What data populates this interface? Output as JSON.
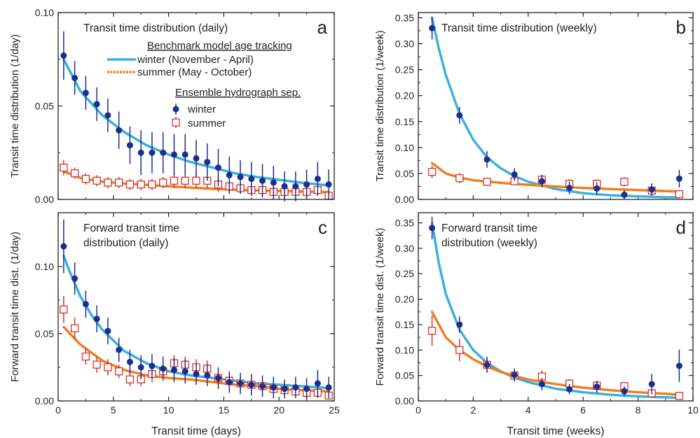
{
  "colors": {
    "winter_model": "#3ab0e2",
    "summer_model": "#f07f1e",
    "winter_points": "#1b2f8f",
    "summer_points": "#d9302b"
  },
  "legend": {
    "model_heading": "Benchmark model age tracking",
    "model_winter": "winter (November - April)",
    "model_summer": "summer (May - October)",
    "ehs_heading": "Ensemble hydrograph sep.",
    "ehs_winter": "winter",
    "ehs_summer": "summer"
  },
  "chart_data": [
    {
      "panel": "a",
      "type": "scatter",
      "title_lines": [
        "Transit time distribution (daily)"
      ],
      "xlabel": "",
      "ylabel": "Transit time distribution (1/day)",
      "xlim": [
        0,
        25
      ],
      "ylim": [
        0,
        0.1
      ],
      "xticks": [
        0,
        5,
        10,
        15,
        20,
        25
      ],
      "yticks": [
        0,
        0.05,
        0.1
      ],
      "ytick_labels": [
        "0.00",
        "0.05",
        "0.10"
      ],
      "show_xtick_labels": false,
      "model_winter": {
        "x": [
          0.5,
          2,
          4,
          6,
          8,
          10,
          12,
          14,
          16,
          18,
          20,
          22,
          24.5
        ],
        "y": [
          0.075,
          0.058,
          0.045,
          0.036,
          0.029,
          0.024,
          0.02,
          0.017,
          0.014,
          0.012,
          0.0105,
          0.009,
          0.0075
        ]
      },
      "model_summer": {
        "x": [
          0.5,
          2,
          4,
          6,
          8,
          10,
          12,
          14,
          16,
          18,
          20,
          22,
          24.5
        ],
        "y": [
          0.015,
          0.0115,
          0.0095,
          0.0085,
          0.0078,
          0.007,
          0.0063,
          0.0057,
          0.0052,
          0.0048,
          0.0045,
          0.0042,
          0.0039
        ]
      },
      "ehs_winter": {
        "x": [
          0.5,
          1.5,
          2.5,
          3.5,
          4.5,
          5.5,
          6.5,
          7.5,
          8.5,
          9.5,
          10.5,
          11.5,
          12.5,
          13.5,
          14.5,
          15.5,
          16.5,
          17.5,
          18.5,
          19.5,
          20.5,
          21.5,
          22.5,
          23.5,
          24.5
        ],
        "y": [
          0.077,
          0.065,
          0.057,
          0.051,
          0.045,
          0.037,
          0.029,
          0.025,
          0.025,
          0.025,
          0.024,
          0.024,
          0.022,
          0.02,
          0.017,
          0.013,
          0.012,
          0.011,
          0.01,
          0.009,
          0.007,
          0.007,
          0.008,
          0.011,
          0.008
        ],
        "err": [
          0.013,
          0.009,
          0.009,
          0.009,
          0.009,
          0.01,
          0.01,
          0.012,
          0.011,
          0.011,
          0.011,
          0.011,
          0.01,
          0.01,
          0.01,
          0.01,
          0.009,
          0.009,
          0.009,
          0.009,
          0.008,
          0.008,
          0.008,
          0.009,
          0.008
        ]
      },
      "ehs_summer": {
        "x": [
          0.5,
          1.5,
          2.5,
          3.5,
          4.5,
          5.5,
          6.5,
          7.5,
          8.5,
          9.5,
          10.5,
          11.5,
          12.5,
          13.5,
          14.5,
          15.5,
          16.5,
          17.5,
          18.5,
          19.5,
          20.5,
          21.5,
          22.5,
          23.5,
          24.5
        ],
        "y": [
          0.017,
          0.014,
          0.011,
          0.01,
          0.009,
          0.009,
          0.008,
          0.008,
          0.008,
          0.009,
          0.01,
          0.01,
          0.01,
          0.01,
          0.008,
          0.007,
          0.006,
          0.005,
          0.005,
          0.004,
          0.004,
          0.004,
          0.004,
          0.005,
          0.002
        ],
        "err": [
          0.004,
          0.003,
          0.003,
          0.003,
          0.003,
          0.003,
          0.003,
          0.003,
          0.003,
          0.003,
          0.004,
          0.004,
          0.004,
          0.004,
          0.004,
          0.003,
          0.003,
          0.003,
          0.003,
          0.003,
          0.003,
          0.003,
          0.003,
          0.003,
          0.002
        ]
      }
    },
    {
      "panel": "b",
      "type": "scatter",
      "title_lines": [
        "Transit time distribution (weekly)"
      ],
      "xlabel": "",
      "ylabel": "Transit time distribution (1/week)",
      "xlim": [
        0,
        10
      ],
      "ylim": [
        0,
        0.36
      ],
      "xticks": [
        0,
        2,
        4,
        6,
        8,
        10
      ],
      "yticks": [
        0,
        0.05,
        0.1,
        0.15,
        0.2,
        0.25,
        0.3,
        0.35
      ],
      "ytick_labels": [
        "0.00",
        "0.05",
        "0.10",
        "0.15",
        "0.20",
        "0.25",
        "0.30",
        "0.35"
      ],
      "show_xtick_labels": false,
      "model_winter": {
        "x": [
          0.5,
          0.75,
          1,
          1.5,
          2,
          2.5,
          3,
          3.5,
          4,
          5,
          6,
          7,
          8,
          9,
          9.5
        ],
        "y": [
          0.35,
          0.29,
          0.24,
          0.165,
          0.115,
          0.081,
          0.06,
          0.045,
          0.034,
          0.02,
          0.012,
          0.008,
          0.006,
          0.004,
          0.004
        ]
      },
      "model_summer": {
        "x": [
          0.5,
          1,
          1.5,
          2,
          3,
          4,
          5,
          6,
          7,
          8,
          9,
          9.5
        ],
        "y": [
          0.07,
          0.05,
          0.042,
          0.037,
          0.032,
          0.028,
          0.025,
          0.022,
          0.02,
          0.018,
          0.016,
          0.015
        ]
      },
      "ehs_winter": {
        "x": [
          0.5,
          1.5,
          2.5,
          3.5,
          4.5,
          5.5,
          6.5,
          7.5,
          8.5,
          9.5
        ],
        "y": [
          0.33,
          0.162,
          0.077,
          0.048,
          0.035,
          0.022,
          0.021,
          0.009,
          0.019,
          0.04
        ],
        "err": [
          0.022,
          0.016,
          0.016,
          0.012,
          0.012,
          0.012,
          0.012,
          0.009,
          0.012,
          0.017
        ]
      },
      "ehs_summer": {
        "x": [
          0.5,
          1.5,
          2.5,
          3.5,
          4.5,
          5.5,
          6.5,
          7.5,
          8.5,
          9.5
        ],
        "y": [
          0.053,
          0.041,
          0.034,
          0.035,
          0.038,
          0.03,
          0.03,
          0.034,
          0.017,
          0.01
        ],
        "err": [
          0.012,
          0.01,
          0.008,
          0.008,
          0.01,
          0.009,
          0.009,
          0.009,
          0.009,
          0.008
        ]
      }
    },
    {
      "panel": "c",
      "type": "scatter",
      "title_lines": [
        "Forward transit time",
        "distribution (daily)"
      ],
      "xlabel": "Transit time (days)",
      "ylabel": "Forward transit time dist. (1/day)",
      "xlim": [
        0,
        25
      ],
      "ylim": [
        0,
        0.14
      ],
      "xticks": [
        0,
        5,
        10,
        15,
        20,
        25
      ],
      "yticks": [
        0,
        0.05,
        0.1
      ],
      "ytick_labels": [
        "0.00",
        "0.05",
        "0.10"
      ],
      "show_xtick_labels": true,
      "model_winter": {
        "x": [
          0.5,
          1,
          2,
          3,
          4,
          6,
          8,
          10,
          12,
          14,
          16,
          18,
          20,
          22,
          24.5
        ],
        "y": [
          0.108,
          0.097,
          0.078,
          0.064,
          0.053,
          0.037,
          0.028,
          0.022,
          0.019,
          0.017,
          0.015,
          0.013,
          0.012,
          0.011,
          0.0095
        ]
      },
      "model_summer": {
        "x": [
          0.5,
          2,
          4,
          6,
          8,
          10,
          12,
          14,
          16,
          18,
          20,
          22,
          24.5
        ],
        "y": [
          0.055,
          0.042,
          0.03,
          0.023,
          0.019,
          0.017,
          0.016,
          0.014,
          0.012,
          0.011,
          0.009,
          0.008,
          0.007
        ]
      },
      "ehs_winter": {
        "x": [
          0.5,
          1.5,
          2.5,
          3.5,
          4.5,
          5.5,
          6.5,
          7.5,
          8.5,
          9.5,
          10.5,
          11.5,
          12.5,
          13.5,
          14.5,
          15.5,
          16.5,
          17.5,
          18.5,
          19.5,
          20.5,
          21.5,
          22.5,
          23.5,
          24.5
        ],
        "y": [
          0.115,
          0.091,
          0.072,
          0.061,
          0.052,
          0.038,
          0.029,
          0.025,
          0.026,
          0.024,
          0.023,
          0.022,
          0.02,
          0.019,
          0.017,
          0.014,
          0.013,
          0.012,
          0.011,
          0.01,
          0.009,
          0.01,
          0.009,
          0.013,
          0.01
        ],
        "err": [
          0.02,
          0.012,
          0.01,
          0.01,
          0.01,
          0.009,
          0.009,
          0.009,
          0.009,
          0.009,
          0.009,
          0.009,
          0.008,
          0.008,
          0.008,
          0.008,
          0.008,
          0.008,
          0.008,
          0.008,
          0.007,
          0.008,
          0.008,
          0.01,
          0.008
        ]
      },
      "ehs_summer": {
        "x": [
          0.5,
          1.5,
          2.5,
          3.5,
          4.5,
          5.5,
          6.5,
          7.5,
          8.5,
          9.5,
          10.5,
          11.5,
          12.5,
          13.5,
          14.5,
          15.5,
          16.5,
          17.5,
          18.5,
          19.5,
          20.5,
          21.5,
          22.5,
          23.5,
          24.5
        ],
        "y": [
          0.068,
          0.054,
          0.033,
          0.027,
          0.025,
          0.022,
          0.016,
          0.016,
          0.02,
          0.022,
          0.028,
          0.027,
          0.025,
          0.024,
          0.017,
          0.015,
          0.013,
          0.012,
          0.011,
          0.009,
          0.008,
          0.007,
          0.006,
          0.006,
          0.004
        ],
        "err": [
          0.01,
          0.008,
          0.006,
          0.006,
          0.006,
          0.005,
          0.005,
          0.005,
          0.006,
          0.006,
          0.006,
          0.006,
          0.006,
          0.006,
          0.005,
          0.005,
          0.005,
          0.005,
          0.004,
          0.004,
          0.004,
          0.004,
          0.004,
          0.004,
          0.003
        ]
      }
    },
    {
      "panel": "d",
      "type": "scatter",
      "title_lines": [
        "Forward transit time",
        "distribution (weekly)"
      ],
      "xlabel": "Transit time (weeks)",
      "ylabel": "Forward transit time dist. (1/week)",
      "xlim": [
        0,
        10
      ],
      "ylim": [
        0,
        0.37
      ],
      "xticks": [
        0,
        2,
        4,
        6,
        8,
        10
      ],
      "yticks": [
        0,
        0.05,
        0.1,
        0.15,
        0.2,
        0.25,
        0.3,
        0.35
      ],
      "ytick_labels": [
        "0.00",
        "0.05",
        "0.10",
        "0.15",
        "0.20",
        "0.25",
        "0.30",
        "0.35"
      ],
      "show_xtick_labels": true,
      "model_winter": {
        "x": [
          0.5,
          0.75,
          1,
          1.5,
          2,
          2.5,
          3,
          3.5,
          4,
          5,
          6,
          7,
          8,
          9,
          9.5
        ],
        "y": [
          0.35,
          0.27,
          0.21,
          0.14,
          0.1,
          0.075,
          0.058,
          0.046,
          0.037,
          0.024,
          0.017,
          0.012,
          0.009,
          0.007,
          0.006
        ]
      },
      "model_summer": {
        "x": [
          0.5,
          1,
          1.5,
          2,
          2.5,
          3,
          3.5,
          4,
          5,
          6,
          7,
          8,
          9,
          9.5
        ],
        "y": [
          0.175,
          0.125,
          0.1,
          0.082,
          0.068,
          0.057,
          0.049,
          0.042,
          0.033,
          0.026,
          0.021,
          0.017,
          0.014,
          0.012
        ]
      },
      "ehs_winter": {
        "x": [
          0.5,
          1.5,
          2.5,
          3.5,
          4.5,
          5.5,
          6.5,
          7.5,
          8.5,
          9.5
        ],
        "y": [
          0.34,
          0.15,
          0.071,
          0.051,
          0.033,
          0.023,
          0.028,
          0.019,
          0.033,
          0.069
        ],
        "err": [
          0.022,
          0.016,
          0.014,
          0.013,
          0.012,
          0.01,
          0.012,
          0.01,
          0.02,
          0.032
        ]
      },
      "ehs_summer": {
        "x": [
          0.5,
          1.5,
          2.5,
          3.5,
          4.5,
          5.5,
          6.5,
          7.5,
          8.5,
          9.5
        ],
        "y": [
          0.138,
          0.1,
          0.071,
          0.05,
          0.048,
          0.034,
          0.03,
          0.029,
          0.015,
          0.01
        ],
        "err": [
          0.03,
          0.022,
          0.016,
          0.01,
          0.012,
          0.009,
          0.008,
          0.008,
          0.007,
          0.006
        ]
      }
    }
  ]
}
